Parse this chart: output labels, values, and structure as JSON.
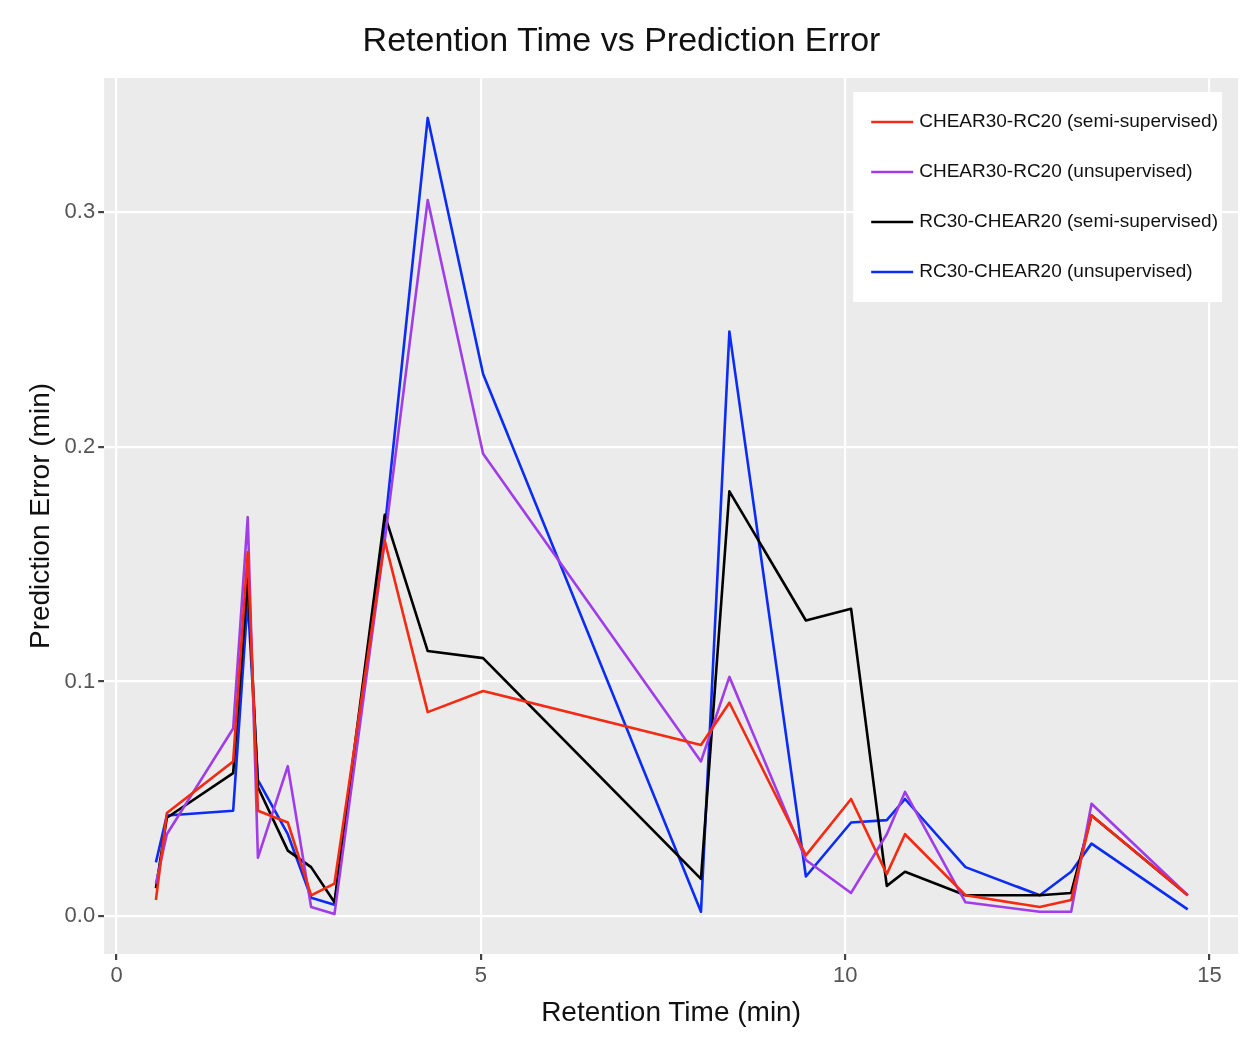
{
  "chart_data": {
    "type": "line",
    "title": "Retention Time vs Prediction Error",
    "xlabel": "Retention Time (min)",
    "ylabel": "Prediction Error (min)",
    "x": [
      0.54,
      0.69,
      1.6,
      1.8,
      1.94,
      2.35,
      2.67,
      2.99,
      3.68,
      4.27,
      5.03,
      8.02,
      8.41,
      9.46,
      10.08,
      10.57,
      10.82,
      11.65,
      12.67,
      13.1,
      13.38,
      14.7
    ],
    "series": [
      {
        "name": "CHEAR30-RC20 (semi-supervised)",
        "color": "#f42a12",
        "values": [
          0.007,
          0.044,
          0.066,
          0.155,
          0.045,
          0.04,
          0.009,
          0.014,
          0.16,
          0.087,
          0.096,
          0.073,
          0.091,
          0.026,
          0.05,
          0.018,
          0.035,
          0.009,
          0.004,
          0.007,
          0.043,
          0.009
        ]
      },
      {
        "name": "CHEAR30-RC20 (unsupervised)",
        "color": "#a03ce8",
        "values": [
          0.014,
          0.035,
          0.08,
          0.17,
          0.025,
          0.064,
          0.004,
          0.001,
          0.16,
          0.305,
          0.197,
          0.066,
          0.102,
          0.024,
          0.01,
          0.035,
          0.053,
          0.006,
          0.002,
          0.002,
          0.048,
          0.009
        ]
      },
      {
        "name": "RC30-CHEAR20 (semi-supervised)",
        "color": "#000000",
        "values": [
          0.012,
          0.042,
          0.061,
          0.145,
          0.055,
          0.028,
          0.021,
          0.006,
          0.171,
          0.113,
          0.11,
          0.016,
          0.181,
          0.126,
          0.131,
          0.013,
          0.019,
          0.009,
          0.009,
          0.01,
          0.043,
          0.009
        ]
      },
      {
        "name": "RC30-CHEAR20 (unsupervised)",
        "color": "#0a2cf5",
        "values": [
          0.023,
          0.043,
          0.045,
          0.135,
          0.058,
          0.035,
          0.008,
          0.005,
          0.165,
          0.34,
          0.231,
          0.002,
          0.249,
          0.017,
          0.04,
          0.041,
          0.05,
          0.021,
          0.009,
          0.019,
          0.031,
          0.003
        ]
      }
    ],
    "xlim": [
      -0.17,
      15.39
    ],
    "ylim": [
      -0.016,
      0.357
    ],
    "xticks": [
      0,
      5,
      10,
      15
    ],
    "yticks": [
      {
        "value": 0,
        "label": "0.0"
      },
      {
        "value": 0.1,
        "label": "0.1"
      },
      {
        "value": 0.2,
        "label": "0.2"
      },
      {
        "value": 0.3,
        "label": "0.3"
      }
    ],
    "grid": true,
    "legend": "top right",
    "marker": "none",
    "line_style": "solid"
  }
}
